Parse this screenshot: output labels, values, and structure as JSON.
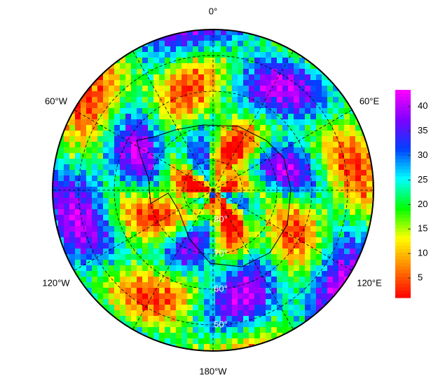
{
  "map": {
    "meridian_labels": [
      "0°",
      "60°W",
      "60°E",
      "120°W",
      "120°E",
      "180°W"
    ],
    "latitude_labels": [
      "80°",
      "70°",
      "60°",
      "50°"
    ],
    "colorbar": {
      "range": [
        1,
        43.4
      ],
      "ticks": [
        5,
        10,
        15,
        20,
        25,
        30,
        35,
        40
      ],
      "colors": [
        "#ff0000",
        "#ff8000",
        "#ffff00",
        "#00ff00",
        "#00ffff",
        "#0040ff",
        "#8000ff",
        "#ff00ff"
      ]
    }
  }
}
